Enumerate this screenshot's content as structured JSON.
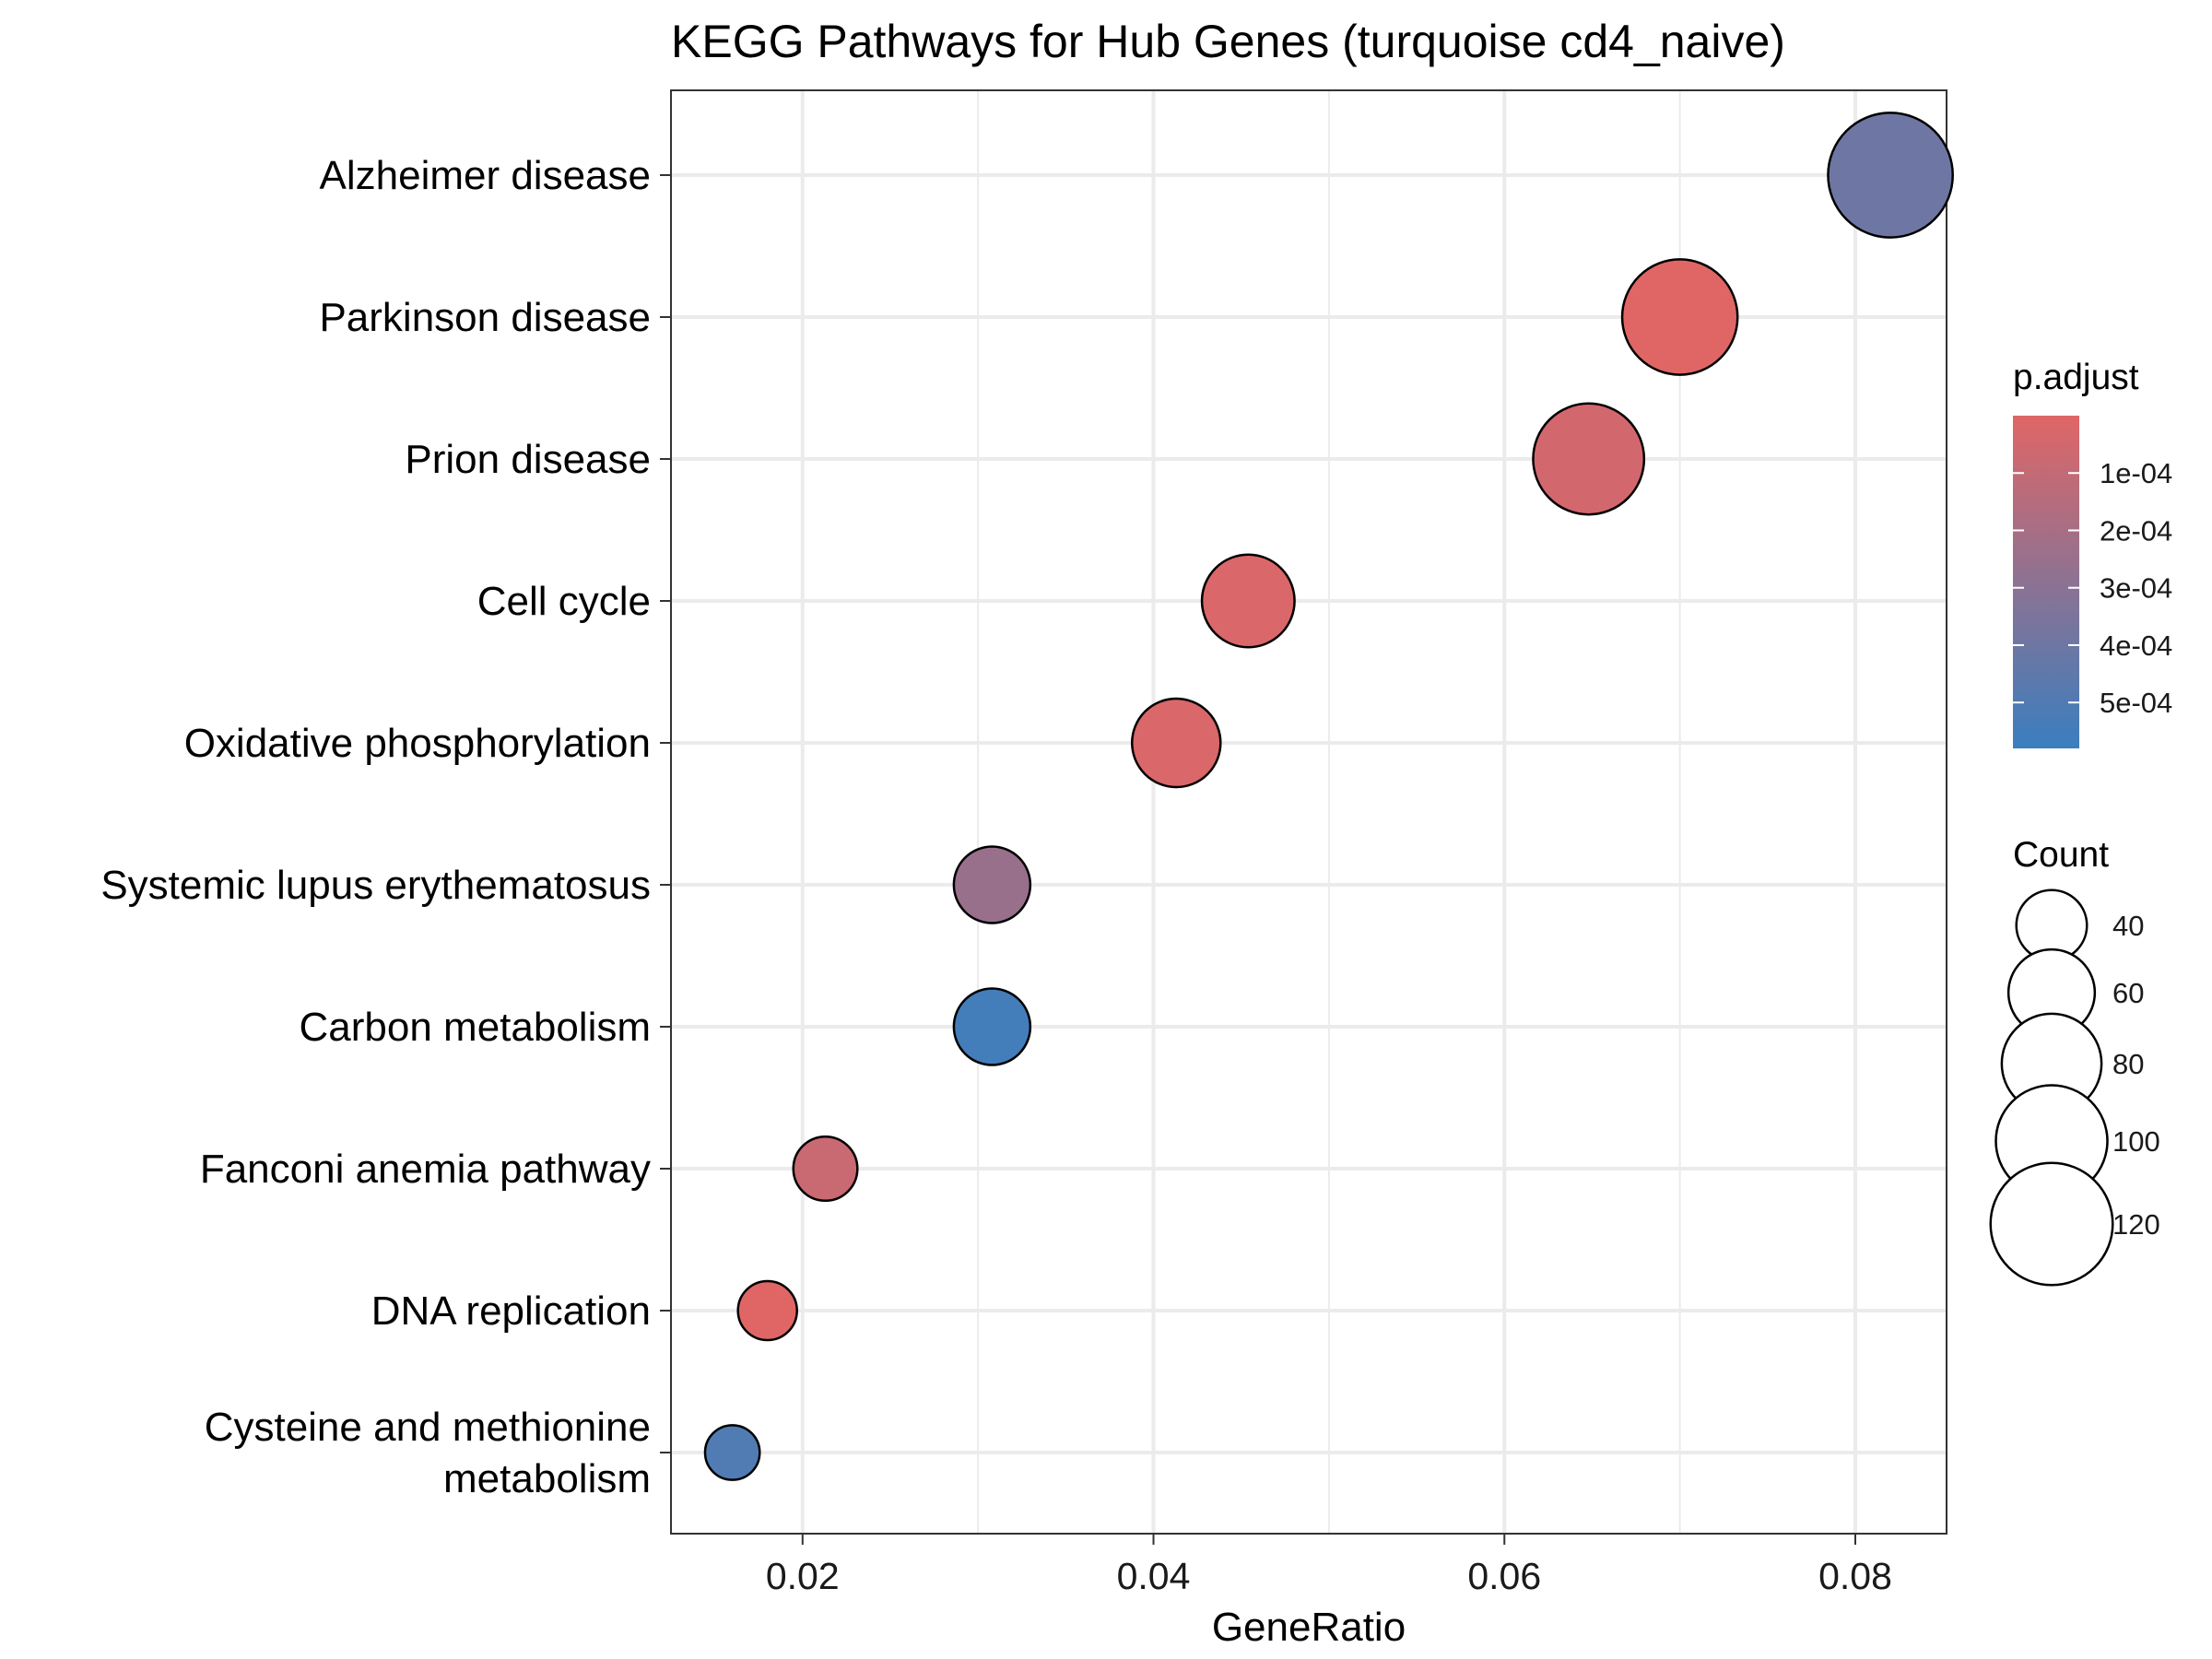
{
  "chart_data": {
    "type": "scatter",
    "title": "KEGG Pathways for Hub Genes (turquoise cd4_naive)",
    "xlabel": "GeneRatio",
    "ylabel": "",
    "xlim": [
      0.0125,
      0.0852
    ],
    "x_ticks": [
      "0.02",
      "0.04",
      "0.06",
      "0.08"
    ],
    "x_tick_values": [
      0.02,
      0.04,
      0.06,
      0.08
    ],
    "grid": true,
    "categories": [
      "Alzheimer disease",
      "Parkinson disease",
      "Prion disease",
      "Cell cycle",
      "Oxidative phosphorylation",
      "Systemic lupus erythematosus",
      "Carbon metabolism",
      "Fanconi anemia pathway",
      "DNA replication",
      "Cysteine and methionine\nmetabolism"
    ],
    "points": [
      {
        "term": "Alzheimer disease",
        "gene_ratio": 0.082,
        "count": 125,
        "p_adjust": 0.0004
      },
      {
        "term": "Parkinson disease",
        "gene_ratio": 0.07,
        "count": 107,
        "p_adjust": 0.0
      },
      {
        "term": "Prion disease",
        "gene_ratio": 0.0648,
        "count": 99,
        "p_adjust": 5e-05
      },
      {
        "term": "Cell cycle",
        "gene_ratio": 0.0454,
        "count": 69,
        "p_adjust": 2e-05
      },
      {
        "term": "Oxidative phosphorylation",
        "gene_ratio": 0.0413,
        "count": 63,
        "p_adjust": 2e-05
      },
      {
        "term": "Systemic lupus erythematosus",
        "gene_ratio": 0.0308,
        "count": 47,
        "p_adjust": 0.00025
      },
      {
        "term": "Carbon metabolism",
        "gene_ratio": 0.0308,
        "count": 47,
        "p_adjust": 0.00055
      },
      {
        "term": "Fanconi anemia pathway",
        "gene_ratio": 0.0213,
        "count": 33,
        "p_adjust": 8e-05
      },
      {
        "term": "DNA replication",
        "gene_ratio": 0.018,
        "count": 28,
        "p_adjust": 0.0
      },
      {
        "term": "Cysteine and methionine\nmetabolism",
        "gene_ratio": 0.016,
        "count": 24,
        "p_adjust": 0.0005
      }
    ],
    "color_legend": {
      "title": "p.adjust",
      "labels": [
        "1e-04",
        "2e-04",
        "3e-04",
        "4e-04",
        "5e-04"
      ],
      "values": [
        0.0001,
        0.0002,
        0.0003,
        0.0004,
        0.0005
      ],
      "range": [
        0.0,
        0.00058
      ],
      "low_color": "#e06666",
      "high_color": "#3a7ebf"
    },
    "size_legend": {
      "title": "Count",
      "labels": [
        "40",
        "60",
        "80",
        "100",
        "120"
      ],
      "values": [
        40,
        60,
        80,
        100,
        120
      ]
    },
    "point_stroke_color": "#000000",
    "grid_color": "#ebebeb"
  }
}
